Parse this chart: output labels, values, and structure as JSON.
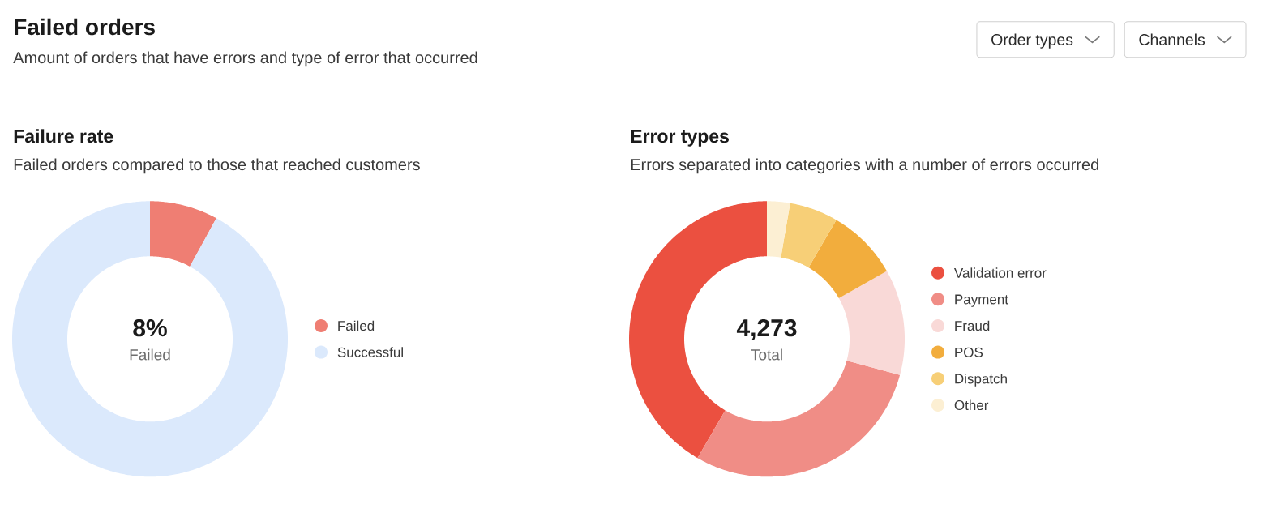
{
  "chart_data": [
    {
      "type": "other",
      "title": "Failed orders",
      "subtitle": "Amount of orders that have errors and type of error that occurred",
      "annotations": [
        "Order types",
        "Channels"
      ]
    },
    {
      "type": "donut",
      "title": "Failure rate",
      "subtitle": "Failed orders compared to those that reached customers",
      "categories": [
        "Failed",
        "Successful"
      ],
      "values": [
        8,
        92
      ],
      "colors": [
        "#ef7e73",
        "#dbe9fc"
      ],
      "annotations": [
        "8%",
        "Failed"
      ],
      "legend": "right"
    },
    {
      "type": "donut",
      "title": "Error types",
      "subtitle": "Errors separated into categories with a number of errors occurred",
      "categories": [
        "Validation error",
        "Payment",
        "Fraud",
        "POS",
        "Dispatch",
        "Other"
      ],
      "values": [
        41.6,
        29.2,
        12.4,
        8.4,
        5.7,
        2.7
      ],
      "colors": [
        "#eb5040",
        "#f08d86",
        "#f9d9d7",
        "#f2ad3d",
        "#f7cf77",
        "#fcefd3"
      ],
      "annotations": [
        "4,273",
        "Total"
      ],
      "legend": "right"
    }
  ]
}
